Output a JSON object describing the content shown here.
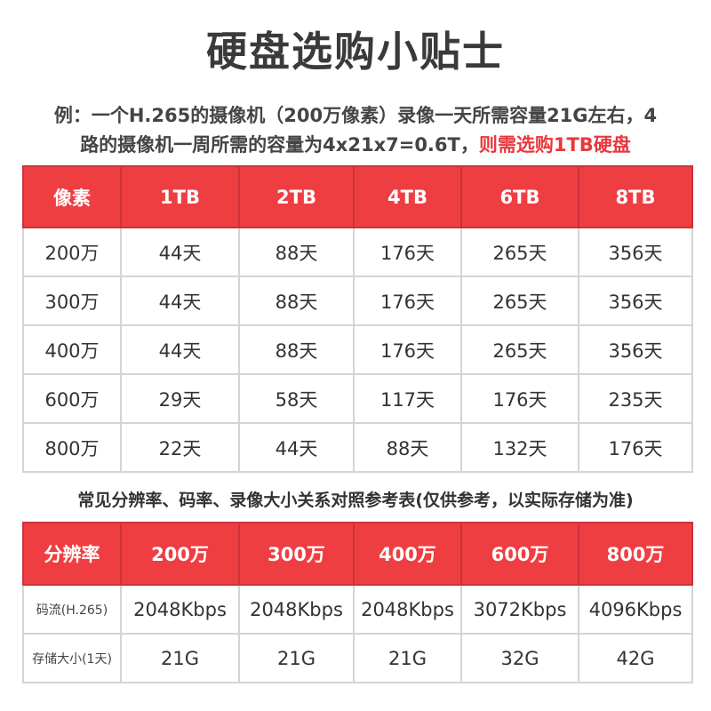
{
  "title": "硬盘选购小贴士",
  "note": {
    "line1": "例：一个H.265的摄像机（200万像素）录像一天所需容量21G左右，4",
    "line2_plain": "路的摄像机一周所需的容量为4x21x7=0.6T，",
    "line2_red": "则需选购1TB硬盘"
  },
  "accent_color": "#ef3e42",
  "table1": {
    "headers": [
      "像素",
      "1TB",
      "2TB",
      "4TB",
      "6TB",
      "8TB"
    ],
    "rows": [
      [
        "200万",
        "44天",
        "88天",
        "176天",
        "265天",
        "356天"
      ],
      [
        "300万",
        "44天",
        "88天",
        "176天",
        "265天",
        "356天"
      ],
      [
        "400万",
        "44天",
        "88天",
        "176天",
        "265天",
        "356天"
      ],
      [
        "600万",
        "29天",
        "58天",
        "117天",
        "176天",
        "235天"
      ],
      [
        "800万",
        "22天",
        "44天",
        "88天",
        "132天",
        "176天"
      ]
    ]
  },
  "subtitle": "常见分辨率、码率、录像大小关系对照参考表(仅供参考，以实际存储为准)",
  "table2": {
    "headers": [
      "分辨率",
      "200万",
      "300万",
      "400万",
      "600万",
      "800万"
    ],
    "rows": [
      [
        "码流(H.265)",
        "2048Kbps",
        "2048Kbps",
        "2048Kbps",
        "3072Kbps",
        "4096Kbps"
      ],
      [
        "存储大小(1天)",
        "21G",
        "21G",
        "21G",
        "32G",
        "42G"
      ]
    ]
  }
}
